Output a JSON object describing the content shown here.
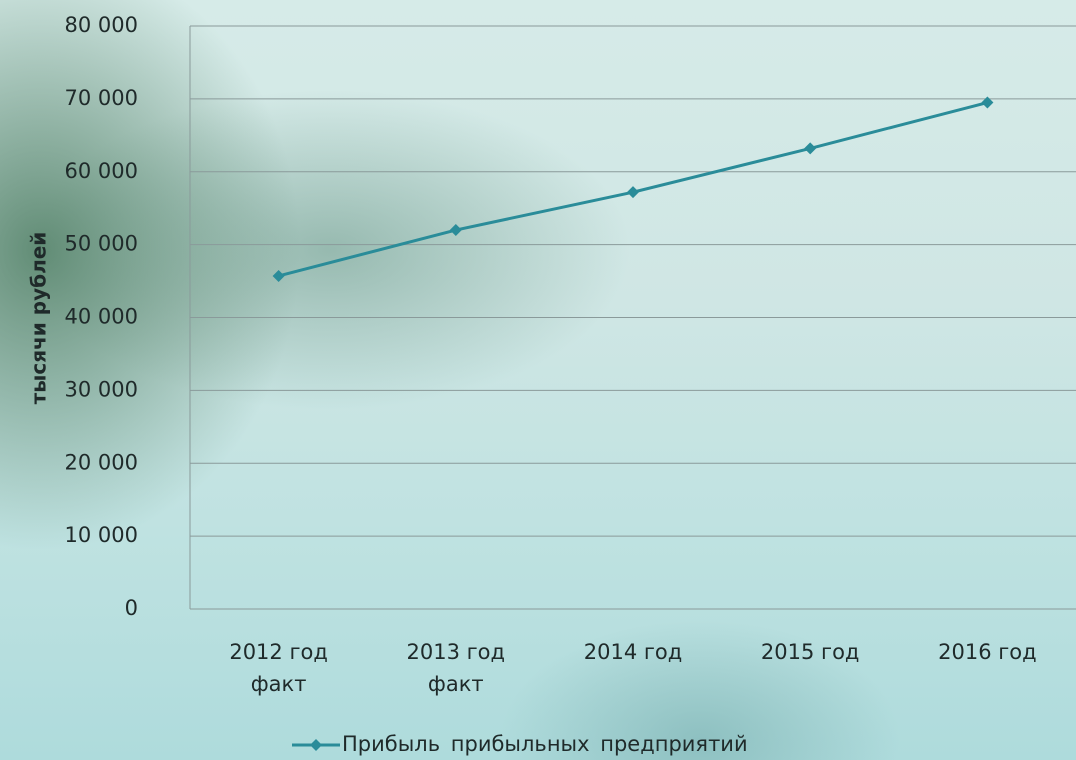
{
  "chart_data": {
    "type": "line",
    "y_label": "тысячи рублей",
    "categories": [
      "2012 год\nфакт",
      "2013 год\nфакт",
      "2014 год",
      "2015 год",
      "2016 год"
    ],
    "series": [
      {
        "name": "Прибыль прибыльных предприятий",
        "color": "#2a8c99",
        "values": [
          45700,
          52000,
          57200,
          63200,
          69500
        ]
      }
    ],
    "ylim": [
      0,
      80000
    ],
    "yticks": [
      0,
      {
        "value": 10000,
        "label": "10 000"
      },
      {
        "value": 20000,
        "label": "20 000"
      },
      {
        "value": 30000,
        "label": "30 000"
      },
      {
        "value": 40000,
        "label": "40 000"
      },
      {
        "value": 50000,
        "label": "50 000"
      },
      {
        "value": 60000,
        "label": "60 000"
      },
      {
        "value": 70000,
        "label": "70 000"
      },
      {
        "value": 80000,
        "label": "80 000"
      }
    ],
    "grid": true,
    "legend": "bottom"
  }
}
